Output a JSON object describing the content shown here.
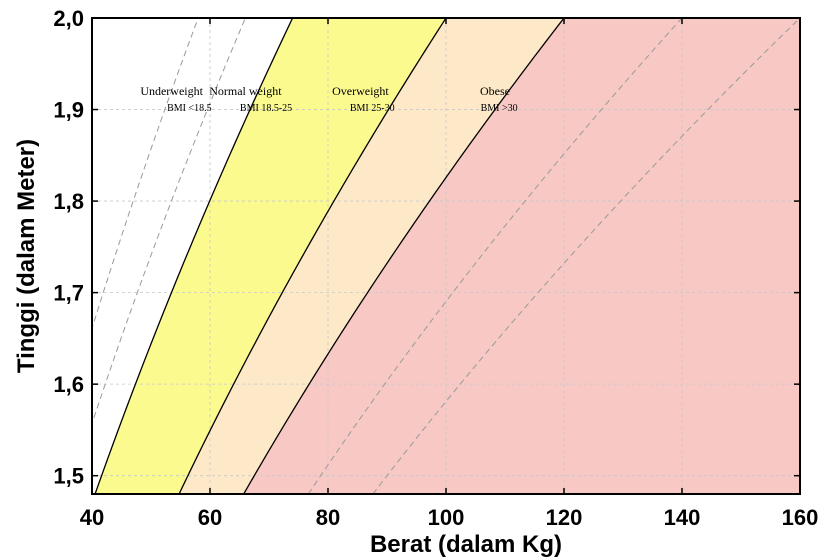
{
  "chart_data": {
    "type": "area",
    "xlabel": "Berat (dalam Kg)",
    "ylabel": "Tinggi (dalam Meter)",
    "xlim": [
      40,
      160
    ],
    "ylim": [
      1.48,
      2.0
    ],
    "x_ticks": [
      40,
      60,
      80,
      100,
      120,
      140,
      160
    ],
    "x_tick_labels": [
      "40",
      "60",
      "80",
      "100",
      "120",
      "140",
      "160"
    ],
    "y_ticks": [
      1.5,
      1.6,
      1.7,
      1.8,
      1.9,
      2.0
    ],
    "y_tick_labels": [
      "1,5",
      "1,6",
      "1,7",
      "1,8",
      "1,9",
      "2,0"
    ],
    "grid": true,
    "zones": [
      {
        "name": "Underweight",
        "range_label": "BMI <18.5",
        "bmi_min": null,
        "bmi_max": 18.5,
        "color": "#ffffff"
      },
      {
        "name": "Normal weight",
        "range_label": "BMI 18.5-25",
        "bmi_min": 18.5,
        "bmi_max": 25,
        "color": "#fbfa8f"
      },
      {
        "name": "Overweight",
        "range_label": "BMI 25-30",
        "bmi_min": 25,
        "bmi_max": 30,
        "color": "#fde8c8"
      },
      {
        "name": "Obese",
        "range_label": "BMI >30",
        "bmi_min": 30,
        "bmi_max": null,
        "color": "#f7c8c4"
      }
    ],
    "boundary_lines_bmi": [
      18.5,
      25,
      30
    ],
    "dashed_reference_lines_bmi": [
      14.5,
      16.5,
      35,
      40
    ],
    "zone_colors": {
      "underweight": "#ffffff",
      "normal": "#fbfa8f",
      "overweight": "#fde8c8",
      "obese": "#f7c8c4"
    }
  }
}
